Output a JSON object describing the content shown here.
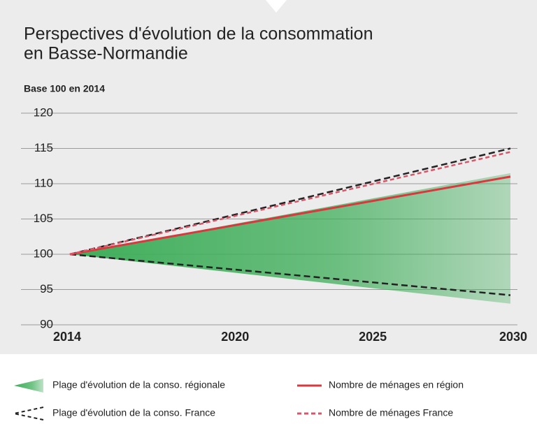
{
  "chart_data": {
    "type": "range-line",
    "title": [
      "Perspectives d'évolution de la consommation",
      "en Basse-Normandie"
    ],
    "subtitle": "Base 100 en 2014",
    "x": [
      2014,
      2030
    ],
    "xlim": [
      2014,
      2030
    ],
    "xticks": [
      2014,
      2020,
      2025,
      2030
    ],
    "ylim": [
      90,
      120
    ],
    "yticks": [
      90,
      95,
      100,
      105,
      110,
      115,
      120
    ],
    "grid": true,
    "series": [
      {
        "name": "Plage d'évolution de la conso. régionale",
        "kind": "area",
        "color": "#3fae5a",
        "low": [
          100,
          93
        ],
        "high": [
          100,
          111.5
        ]
      },
      {
        "name": "Plage d'évolution de la conso. France",
        "kind": "dashed-range",
        "color": "#222222",
        "low": [
          100,
          94.2
        ],
        "high": [
          100,
          115
        ]
      },
      {
        "name": "Nombre de ménages en région",
        "kind": "line",
        "color": "#d9383f",
        "values": [
          100,
          111
        ]
      },
      {
        "name": "Nombre de ménages France",
        "kind": "dashed-line",
        "color": "#d9566a",
        "values": [
          100,
          114.5
        ]
      }
    ]
  }
}
